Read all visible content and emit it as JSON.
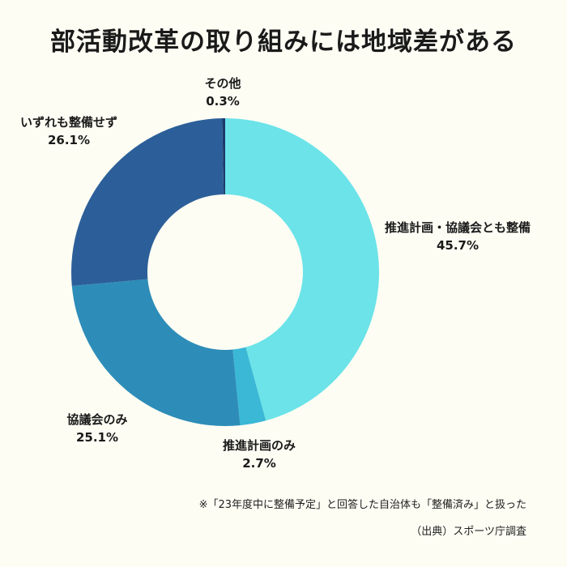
{
  "chart_data": {
    "type": "pie",
    "title": "部活動改革の取り組みには地域差がある",
    "categories": [
      "推進計画・協議会とも整備",
      "推進計画のみ",
      "協議会のみ",
      "いずれも整備せず",
      "その他"
    ],
    "values": [
      45.7,
      2.7,
      25.1,
      26.1,
      0.3
    ],
    "value_labels": [
      "45.7%",
      "2.7%",
      "25.1%",
      "26.1%",
      "0.3%"
    ],
    "colors": [
      "#6be3e8",
      "#3ab8d6",
      "#2d8db8",
      "#2c5f99",
      "#1b3a6b"
    ]
  },
  "notes": {
    "note": "※「23年度中に整備予定」と回答した自治体も「整備済み」と扱った",
    "source": "（出典）スポーツ庁調査"
  }
}
